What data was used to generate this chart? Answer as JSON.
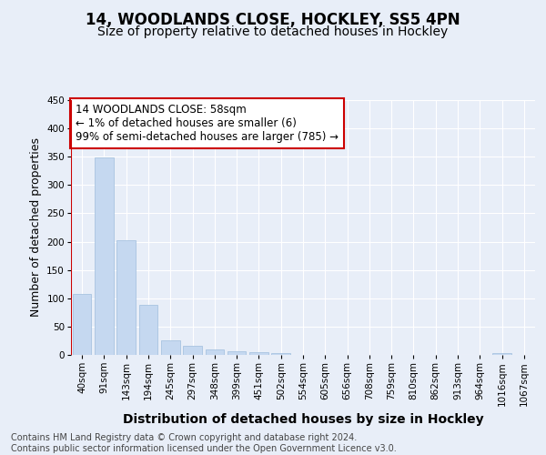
{
  "title": "14, WOODLANDS CLOSE, HOCKLEY, SS5 4PN",
  "subtitle": "Size of property relative to detached houses in Hockley",
  "xlabel": "Distribution of detached houses by size in Hockley",
  "ylabel": "Number of detached properties",
  "categories": [
    "40sqm",
    "91sqm",
    "143sqm",
    "194sqm",
    "245sqm",
    "297sqm",
    "348sqm",
    "399sqm",
    "451sqm",
    "502sqm",
    "554sqm",
    "605sqm",
    "656sqm",
    "708sqm",
    "759sqm",
    "810sqm",
    "862sqm",
    "913sqm",
    "964sqm",
    "1016sqm",
    "1067sqm"
  ],
  "values": [
    107,
    348,
    203,
    88,
    25,
    16,
    9,
    7,
    5,
    3,
    0,
    0,
    0,
    0,
    0,
    0,
    0,
    0,
    0,
    4,
    0
  ],
  "bar_color": "#c5d8f0",
  "bar_edge_color": "#a8c4e0",
  "vline_color": "#cc0000",
  "annotation_text": "14 WOODLANDS CLOSE: 58sqm\n← 1% of detached houses are smaller (6)\n99% of semi-detached houses are larger (785) →",
  "annotation_box_color": "#ffffff",
  "annotation_box_edge": "#cc0000",
  "ylim": [
    0,
    450
  ],
  "yticks": [
    0,
    50,
    100,
    150,
    200,
    250,
    300,
    350,
    400,
    450
  ],
  "background_color": "#e8eef8",
  "footnote": "Contains HM Land Registry data © Crown copyright and database right 2024.\nContains public sector information licensed under the Open Government Licence v3.0.",
  "title_fontsize": 12,
  "subtitle_fontsize": 10,
  "xlabel_fontsize": 10,
  "ylabel_fontsize": 9,
  "tick_fontsize": 7.5,
  "annotation_fontsize": 8.5,
  "footnote_fontsize": 7
}
